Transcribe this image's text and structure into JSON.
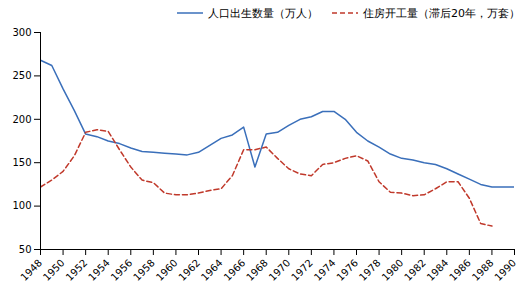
{
  "chart_data": {
    "type": "line",
    "x": [
      1948,
      1949,
      1950,
      1951,
      1952,
      1953,
      1954,
      1955,
      1956,
      1957,
      1958,
      1959,
      1960,
      1961,
      1962,
      1963,
      1964,
      1965,
      1966,
      1967,
      1968,
      1969,
      1970,
      1971,
      1972,
      1973,
      1974,
      1975,
      1976,
      1977,
      1978,
      1979,
      1980,
      1981,
      1982,
      1983,
      1984,
      1985,
      1986,
      1987,
      1988,
      1989,
      1990
    ],
    "series": [
      {
        "name": "人口出生数量（万人）",
        "color": "#3a6fba",
        "line_style": "solid",
        "values": [
          268,
          262,
          235,
          210,
          183,
          180,
          175,
          172,
          167,
          163,
          162,
          161,
          160,
          159,
          162,
          170,
          178,
          182,
          191,
          145,
          183,
          185,
          193,
          200,
          203,
          209,
          209,
          200,
          185,
          175,
          168,
          160,
          155,
          153,
          150,
          148,
          143,
          137,
          131,
          125,
          122,
          122,
          122
        ]
      },
      {
        "name": "住房开工量（滞后20年，万套）",
        "color": "#c0392b",
        "line_style": "dashed",
        "values": [
          122,
          130,
          140,
          158,
          185,
          188,
          186,
          165,
          145,
          130,
          127,
          115,
          113,
          113,
          115,
          118,
          120,
          135,
          165,
          165,
          168,
          155,
          143,
          137,
          135,
          148,
          150,
          155,
          158,
          152,
          128,
          116,
          115,
          112,
          113,
          120,
          128,
          128,
          109,
          80,
          77,
          null,
          null
        ]
      }
    ],
    "xlim": [
      1948,
      1990
    ],
    "xticks": [
      1948,
      1950,
      1952,
      1954,
      1956,
      1958,
      1960,
      1962,
      1964,
      1966,
      1968,
      1970,
      1972,
      1974,
      1976,
      1978,
      1980,
      1982,
      1984,
      1986,
      1988,
      1990
    ],
    "ylim": [
      50,
      300
    ],
    "yticks": [
      50,
      100,
      150,
      200,
      250,
      300
    ],
    "grid": false,
    "legend": "upper right"
  }
}
